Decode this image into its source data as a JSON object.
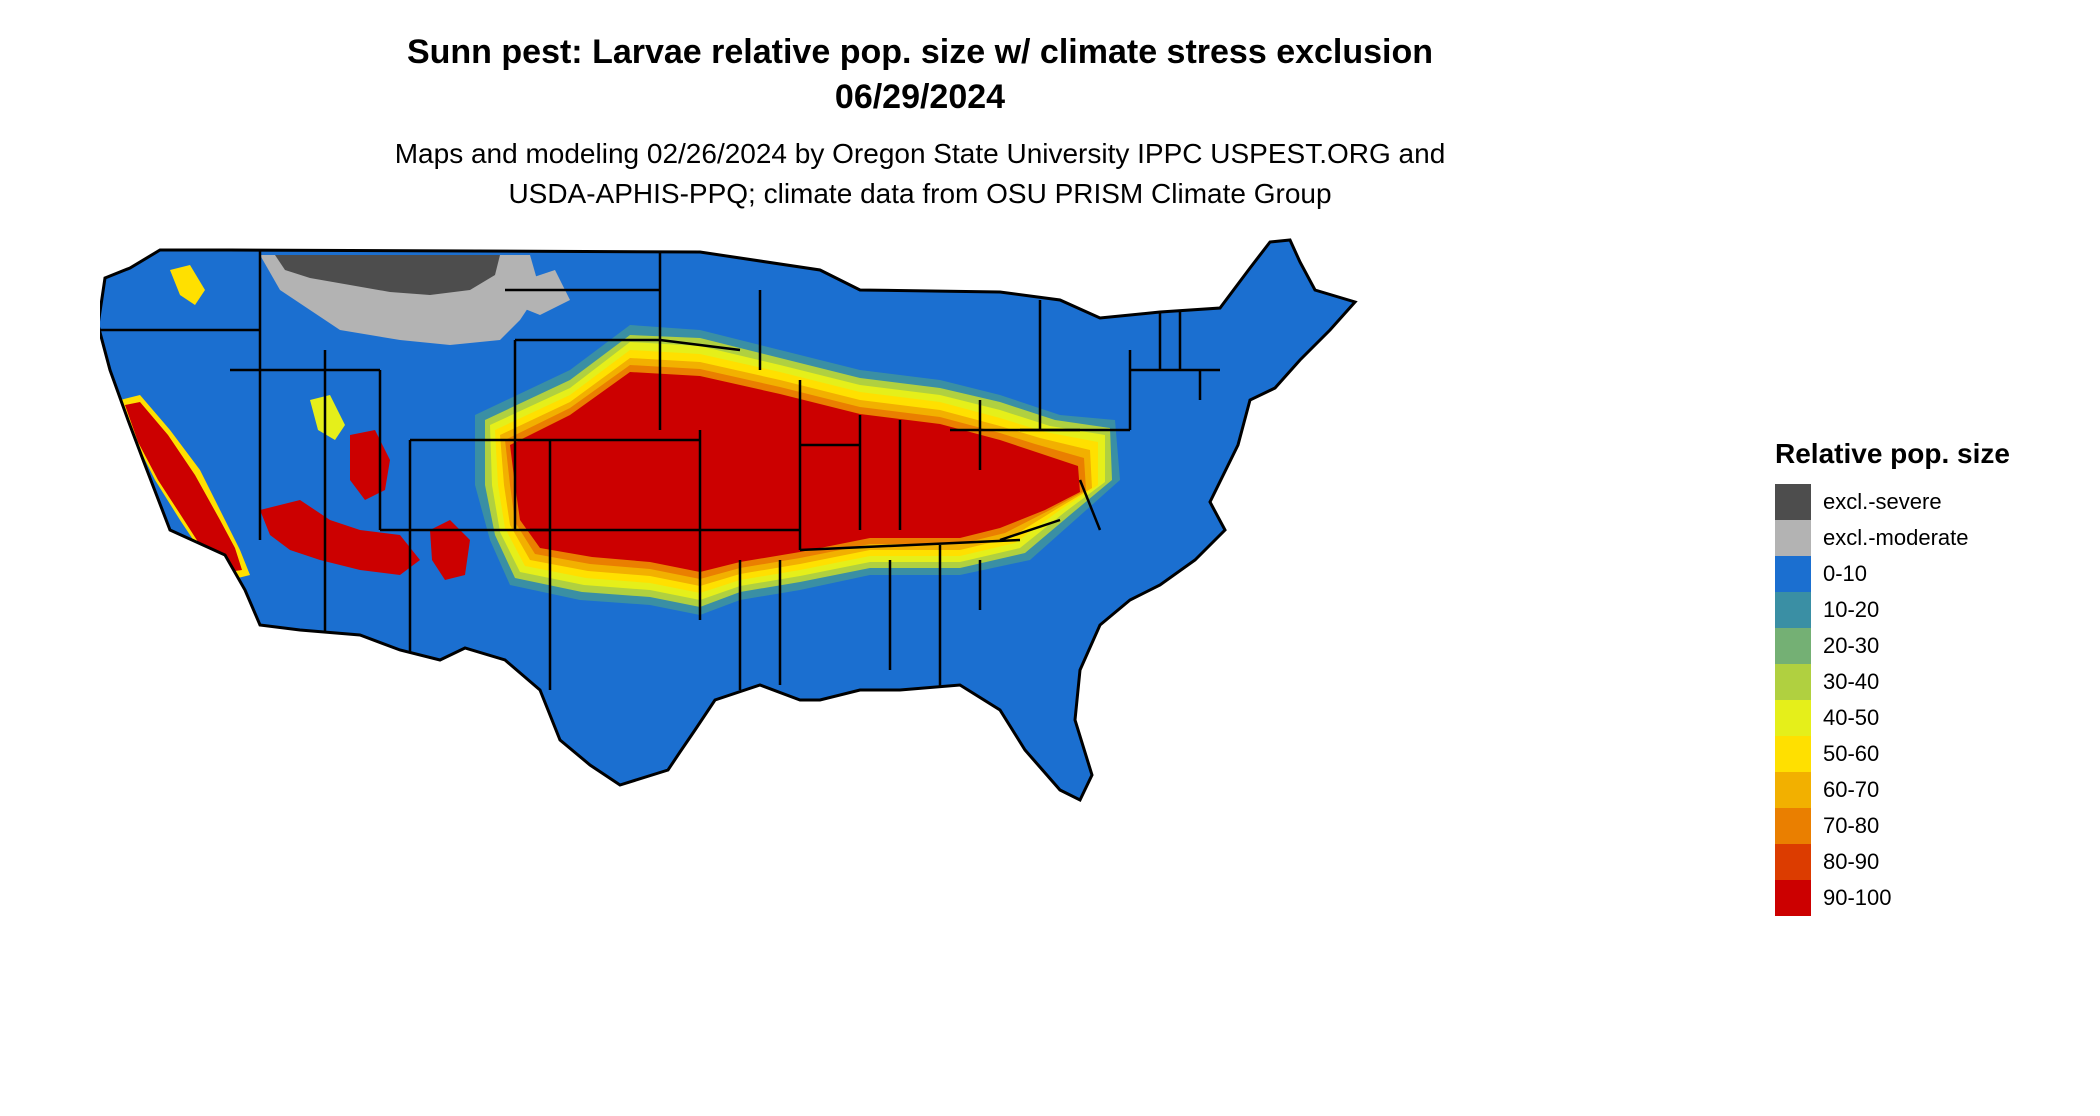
{
  "header": {
    "title_line1": "Sunn pest: Larvae relative pop. size w/ climate stress exclusion",
    "title_line2": "06/29/2024",
    "subtitle_line1": "Maps and modeling 02/26/2024 by Oregon State University IPPC USPEST.ORG and",
    "subtitle_line2": "USDA-APHIS-PPQ; climate data from OSU PRISM Climate Group"
  },
  "legend": {
    "title": "Relative pop. size",
    "items": [
      {
        "label": "excl.-severe",
        "color": "#4d4d4d"
      },
      {
        "label": "excl.-moderate",
        "color": "#b3b3b3"
      },
      {
        "label": "0-10",
        "color": "#1b6fd0"
      },
      {
        "label": "10-20",
        "color": "#3a8fa4"
      },
      {
        "label": "20-30",
        "color": "#74b074"
      },
      {
        "label": "30-40",
        "color": "#b0d040"
      },
      {
        "label": "40-50",
        "color": "#e5ef1a"
      },
      {
        "label": "50-60",
        "color": "#ffe000"
      },
      {
        "label": "60-70",
        "color": "#f2b000"
      },
      {
        "label": "70-80",
        "color": "#ea7f00"
      },
      {
        "label": "80-90",
        "color": "#dc3c00"
      },
      {
        "label": "90-100",
        "color": "#cc0000"
      }
    ]
  }
}
